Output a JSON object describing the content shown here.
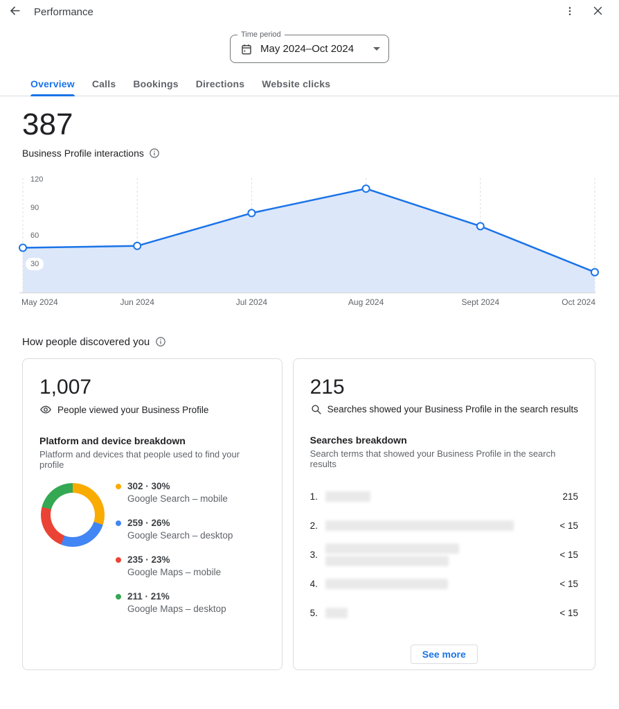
{
  "header": {
    "title": "Performance"
  },
  "time_period": {
    "label": "Time period",
    "value": "May 2024–Oct 2024"
  },
  "tabs": [
    {
      "label": "Overview",
      "active": true
    },
    {
      "label": "Calls",
      "active": false
    },
    {
      "label": "Bookings",
      "active": false
    },
    {
      "label": "Directions",
      "active": false
    },
    {
      "label": "Website clicks",
      "active": false
    }
  ],
  "metric": {
    "value": "387",
    "label": "Business Profile interactions"
  },
  "chart_data": {
    "type": "line",
    "title": "Business Profile interactions",
    "x": [
      "May 2024",
      "Jun 2024",
      "Jul 2024",
      "Aug 2024",
      "Sept 2024",
      "Oct 2024"
    ],
    "values": [
      48,
      50,
      85,
      111,
      71,
      22
    ],
    "ylim": [
      0,
      120
    ],
    "yticks": [
      30,
      60,
      90,
      120
    ],
    "grid": "vertical-dashed",
    "legend_position": "none",
    "line_color": "#1a73e8",
    "fill_color": "#dce7fa",
    "point_fill": "#ffffff"
  },
  "discovery": {
    "heading": "How people discovered you",
    "views_card": {
      "value": "1,007",
      "caption": "People viewed your Business Profile",
      "breakdown_title": "Platform and device breakdown",
      "breakdown_subtitle": "Platform and devices that people used to find your profile",
      "platforms": [
        {
          "label": "Google Search – mobile",
          "value": 302,
          "percent": 30,
          "display": "302 · 30%",
          "color": "#F9AB00"
        },
        {
          "label": "Google Search – desktop",
          "value": 259,
          "percent": 26,
          "display": "259 · 26%",
          "color": "#4285F4"
        },
        {
          "label": "Google Maps – mobile",
          "value": 235,
          "percent": 23,
          "display": "235 · 23%",
          "color": "#EA4335"
        },
        {
          "label": "Google Maps – desktop",
          "value": 211,
          "percent": 21,
          "display": "211 · 21%",
          "color": "#34A853"
        }
      ]
    },
    "searches_card": {
      "value": "215",
      "caption": "Searches showed your Business Profile in the search results",
      "breakdown_title": "Searches breakdown",
      "breakdown_subtitle": "Search terms that showed your Business Profile in the search results",
      "terms": [
        {
          "rank": "1.",
          "impressions": "215",
          "redacted": true,
          "blur_widths": [
            65
          ]
        },
        {
          "rank": "2.",
          "impressions": "< 15",
          "redacted": true,
          "blur_widths": [
            272
          ]
        },
        {
          "rank": "3.",
          "impressions": "< 15",
          "redacted": true,
          "blur_widths": [
            193,
            178
          ]
        },
        {
          "rank": "4.",
          "impressions": "< 15",
          "redacted": true,
          "blur_widths": [
            177
          ]
        },
        {
          "rank": "5.",
          "impressions": "< 15",
          "redacted": true,
          "blur_widths": [
            32
          ]
        }
      ],
      "see_more_label": "See more"
    }
  }
}
